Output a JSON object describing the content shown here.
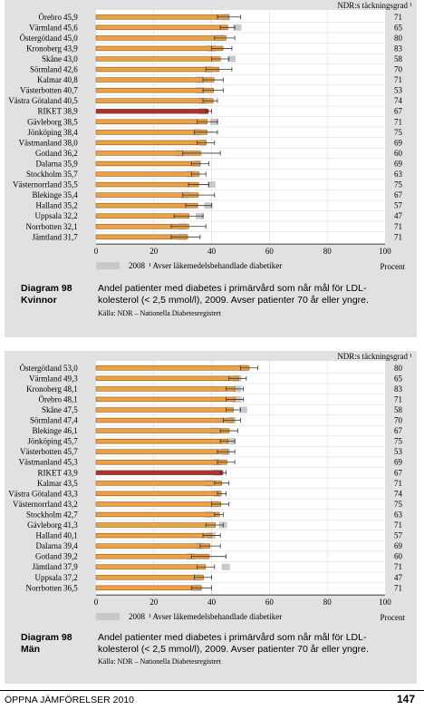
{
  "chart_data": [
    {
      "type": "bar",
      "coverage_header": "NDR:s täckningsgrad ¹",
      "xlabel": "Procent",
      "xlim": [
        0,
        100
      ],
      "xticks": [
        0,
        20,
        40,
        60,
        80,
        100
      ],
      "legend": {
        "year_label": "2008",
        "note": "¹ Avser läkemedelsbehandlade diabetiker"
      },
      "caption_label_1": "Diagram 98",
      "caption_label_2": "Kvinnor",
      "caption_text": "Andel patienter med diabetes i primärvård som når mål för LDL-kolesterol (< 2,5 mmol/l), 2009. Avser patienter 70 år eller yngre.",
      "source": "Källa: NDR – Nationella Diabetesregistret",
      "colors": {
        "bar": "#f0a040",
        "highlight": "#b03030",
        "bar2008": "#c8c8c8",
        "band": "#fbe3b8"
      },
      "categories": [
        "Örebro",
        "Värmland",
        "Östergötland",
        "Kronoberg",
        "Skåne",
        "Sörmland",
        "Kalmar",
        "Västerbotten",
        "Västra Götaland",
        "RIKET",
        "Gävleborg",
        "Jönköping",
        "Västmanland",
        "Gotland",
        "Dalarna",
        "Stockholm",
        "Västernorrland",
        "Blekinge",
        "Halland",
        "Uppsala",
        "Norrbotten",
        "Jämtland"
      ],
      "value_labels": [
        "45,9",
        "45,6",
        "45,0",
        "43,9",
        "43,0",
        "42,6",
        "40,8",
        "40,7",
        "40,5",
        "38,9",
        "38,5",
        "38,4",
        "38,0",
        "36,2",
        "35,9",
        "35,7",
        "35,5",
        "35,4",
        "35,2",
        "32,2",
        "32,1",
        "31,7"
      ],
      "values": [
        45.9,
        45.6,
        45.0,
        43.9,
        43.0,
        42.6,
        40.8,
        40.7,
        40.5,
        38.9,
        38.5,
        38.4,
        38.0,
        36.2,
        35.9,
        35.7,
        35.5,
        35.4,
        35.2,
        32.2,
        32.1,
        31.7
      ],
      "values_2008": [
        46,
        50,
        44,
        41,
        48,
        40,
        37,
        37,
        38,
        38,
        42,
        36,
        38,
        30,
        36,
        34,
        41,
        32,
        40,
        37,
        31,
        31
      ],
      "ci_low": [
        42,
        43,
        41,
        40,
        40,
        38,
        37,
        37,
        37,
        38,
        35,
        34,
        35,
        30,
        33,
        33,
        32,
        30,
        31,
        27,
        26,
        26
      ],
      "ci_high": [
        50,
        48,
        48,
        47,
        46,
        47,
        44,
        44,
        42,
        40,
        42,
        42,
        41,
        43,
        39,
        38,
        39,
        41,
        40,
        37,
        38,
        36
      ],
      "coverage": [
        "71",
        "65",
        "80",
        "83",
        "58",
        "70",
        "71",
        "53",
        "74",
        "67",
        "71",
        "75",
        "69",
        "60",
        "69",
        "63",
        "75",
        "67",
        "57",
        "47",
        "71",
        "71"
      ],
      "highlight_index": 9
    },
    {
      "type": "bar",
      "coverage_header": "NDR:s täckningsgrad ¹",
      "xlabel": "Procent",
      "xlim": [
        0,
        100
      ],
      "xticks": [
        0,
        20,
        40,
        60,
        80,
        100
      ],
      "legend": {
        "year_label": "2008",
        "note": "¹ Avser läkemedelsbehandlade diabetiker"
      },
      "caption_label_1": "Diagram 98",
      "caption_label_2": "Män",
      "caption_text": "Andel patienter med diabetes i primärvård som når mål för LDL-kolesterol (< 2,5 mmol/l), 2009. Avser patienter 70 år eller yngre.",
      "source": "Källa: NDR – Nationella Diabetesregistret",
      "colors": {
        "bar": "#f0a040",
        "highlight": "#b03030",
        "bar2008": "#c8c8c8",
        "band": "#fbe3b8"
      },
      "categories": [
        "Östergötland",
        "Värmland",
        "Kronoberg",
        "Örebro",
        "Skåne",
        "Sörmland",
        "Blekinge",
        "Jönköping",
        "Västerbotten",
        "Västmanland",
        "RIKET",
        "Kalmar",
        "Västra Götaland",
        "Västernorrland",
        "Stockholm",
        "Gävleborg",
        "Halland",
        "Dalarna",
        "Gotland",
        "Jämtland",
        "Uppsala",
        "Norrbotten"
      ],
      "value_labels": [
        "53,0",
        "49,3",
        "48,1",
        "48,1",
        "47,5",
        "47,4",
        "46,1",
        "45,7",
        "45,7",
        "45,3",
        "43,9",
        "43,5",
        "43,3",
        "43,2",
        "42,7",
        "41,3",
        "40,1",
        "39,4",
        "39,2",
        "37,9",
        "37,2",
        "36,5"
      ],
      "values": [
        53.0,
        49.3,
        48.1,
        48.1,
        47.5,
        47.4,
        46.1,
        45.7,
        45.7,
        45.3,
        43.9,
        43.5,
        43.3,
        43.2,
        42.7,
        41.3,
        40.1,
        39.4,
        39.2,
        37.9,
        37.2,
        36.5
      ],
      "values_2008": [
        52,
        50,
        50,
        50,
        52,
        48,
        42,
        48,
        46,
        43,
        43,
        40,
        43,
        42,
        40,
        45,
        41,
        37,
        34,
        46,
        36,
        36
      ],
      "ci_low": [
        50,
        46,
        45,
        45,
        45,
        44,
        43,
        43,
        42,
        42,
        43,
        41,
        42,
        40,
        41,
        38,
        37,
        36,
        33,
        35,
        34,
        33
      ],
      "ci_high": [
        56,
        52,
        51,
        51,
        50,
        50,
        49,
        48,
        48,
        48,
        45,
        46,
        45,
        46,
        44,
        44,
        43,
        43,
        45,
        41,
        40,
        40
      ],
      "coverage": [
        "80",
        "65",
        "83",
        "71",
        "58",
        "70",
        "67",
        "75",
        "53",
        "69",
        "67",
        "71",
        "74",
        "75",
        "63",
        "71",
        "57",
        "69",
        "60",
        "71",
        "47",
        "71"
      ],
      "highlight_index": 10
    }
  ],
  "footer": {
    "left": "ÖPPNA JÄMFÖRELSER 2010",
    "page": "147"
  }
}
